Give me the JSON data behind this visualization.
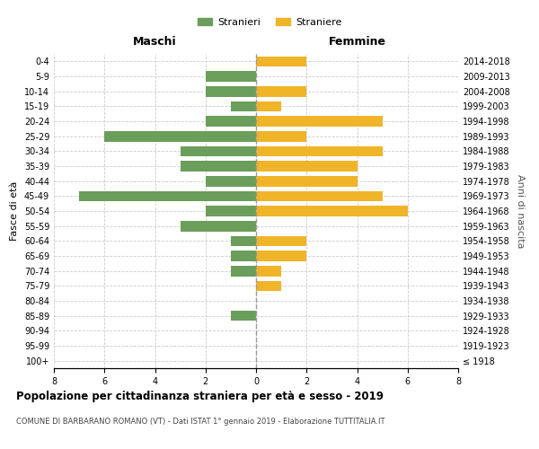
{
  "age_groups": [
    "0-4",
    "5-9",
    "10-14",
    "15-19",
    "20-24",
    "25-29",
    "30-34",
    "35-39",
    "40-44",
    "45-49",
    "50-54",
    "55-59",
    "60-64",
    "65-69",
    "70-74",
    "75-79",
    "80-84",
    "85-89",
    "90-94",
    "95-99",
    "100+"
  ],
  "birth_years": [
    "2014-2018",
    "2009-2013",
    "2004-2008",
    "1999-2003",
    "1994-1998",
    "1989-1993",
    "1984-1988",
    "1979-1983",
    "1974-1978",
    "1969-1973",
    "1964-1968",
    "1959-1963",
    "1954-1958",
    "1949-1953",
    "1944-1948",
    "1939-1943",
    "1934-1938",
    "1929-1933",
    "1924-1928",
    "1919-1923",
    "≤ 1918"
  ],
  "males": [
    0,
    2,
    2,
    1,
    2,
    6,
    3,
    3,
    2,
    7,
    2,
    3,
    1,
    1,
    1,
    0,
    0,
    1,
    0,
    0,
    0
  ],
  "females": [
    2,
    0,
    2,
    1,
    5,
    2,
    5,
    4,
    4,
    5,
    6,
    0,
    2,
    2,
    1,
    1,
    0,
    0,
    0,
    0,
    0
  ],
  "male_color": "#6a9e5a",
  "female_color": "#f0b429",
  "title": "Popolazione per cittadinanza straniera per età e sesso - 2019",
  "subtitle": "COMUNE DI BARBARANO ROMANO (VT) - Dati ISTAT 1° gennaio 2019 - Elaborazione TUTTITALIA.IT",
  "xlabel_left": "Maschi",
  "xlabel_right": "Femmine",
  "ylabel_left": "Fasce di età",
  "ylabel_right": "Anni di nascita",
  "legend_male": "Stranieri",
  "legend_female": "Straniere",
  "xlim": 8,
  "background_color": "#ffffff",
  "grid_color": "#cccccc"
}
